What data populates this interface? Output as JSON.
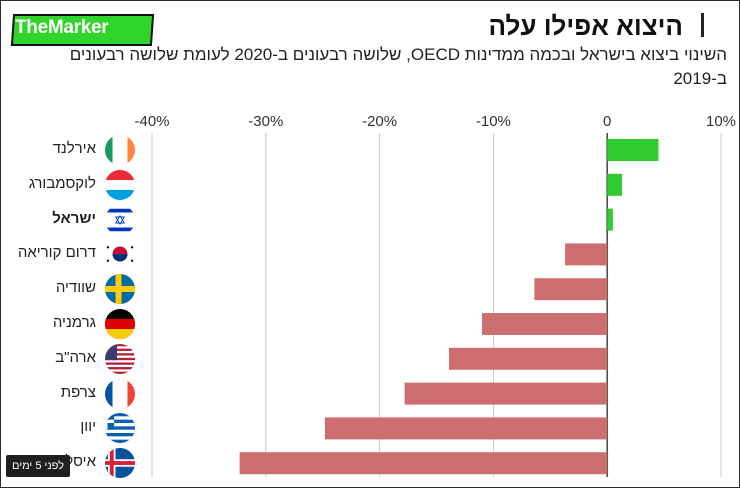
{
  "header": {
    "logo": "TheMarker",
    "title": "היצוא אפילו עלה",
    "subtitle": "השינוי ביצוא בישראל ובכמה ממדינות OECD, שלושה רבעונים ב-2020 לעומת שלושה רבעונים ב-2019"
  },
  "badge": "לפני 5 ימים",
  "colors": {
    "positive": "#2ecc2e",
    "negative": "#cd6f71",
    "grid": "#c8c8c8"
  },
  "chart_data": {
    "type": "bar",
    "orientation": "horizontal",
    "title": "היצוא אפילו עלה",
    "subtitle": "השינוי ביצוא בישראל ובכמה ממדינות OECD, שלושה רבעונים ב-2020 לעומת שלושה רבעונים ב-2019",
    "xlim": [
      -40,
      10
    ],
    "xticks": [
      -40,
      -30,
      -20,
      -10,
      0,
      10
    ],
    "xtick_labels": [
      "-40%",
      "-30%",
      "-20%",
      "-10%",
      "0",
      "10%"
    ],
    "grid": true,
    "categories": [
      "אירלנד",
      "לוקסמבורג",
      "ישראל",
      "דרום קוריאה",
      "שוודיה",
      "גרמניה",
      "ארה\"ב",
      "צרפת",
      "יוון",
      "איסלנד"
    ],
    "values": [
      4.5,
      1.3,
      0.5,
      -3.7,
      -6.4,
      -11,
      -13.9,
      -17.8,
      -24.8,
      -32.3
    ],
    "highlight": "ישראל",
    "flags": [
      "flag-ireland",
      "flag-luxembourg",
      "flag-israel",
      "flag-south-korea",
      "flag-sweden",
      "flag-germany",
      "flag-usa",
      "flag-france",
      "flag-greece",
      "flag-iceland"
    ]
  }
}
